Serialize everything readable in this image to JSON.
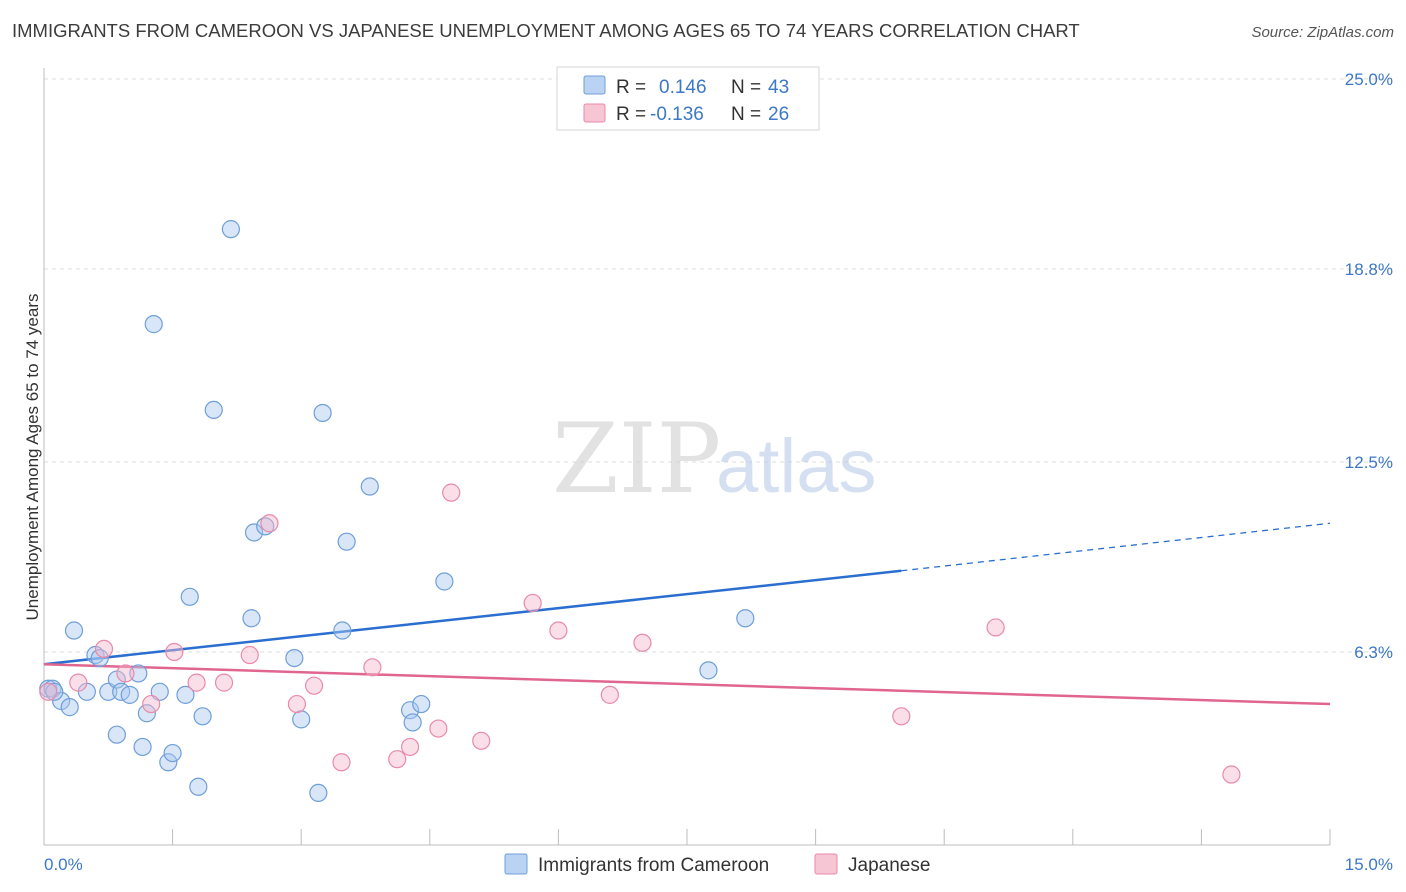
{
  "title": "IMMIGRANTS FROM CAMEROON VS JAPANESE UNEMPLOYMENT AMONG AGES 65 TO 74 YEARS CORRELATION CHART",
  "source": "Source: ZipAtlas.com",
  "watermark": {
    "zip": "ZIP",
    "atlas": "atlas"
  },
  "colors": {
    "blue_fill": "#a9c8ef",
    "blue_stroke": "#6f9fd8",
    "blue_line": "#2a6fcf",
    "pink_fill": "#f5b8cb",
    "pink_stroke": "#e98aa9",
    "pink_line": "#e0668f",
    "grid": "#dcdcdc",
    "tick_text": "#3d78c8"
  },
  "legend": {
    "rows": [
      {
        "r_label": "R =",
        "r_value": "0.146",
        "n_label": "N =",
        "n_value": "43"
      },
      {
        "r_label": "R =",
        "r_value": "-0.136",
        "n_label": "N =",
        "n_value": "26"
      }
    ]
  },
  "bottom_legend": {
    "series1": "Immigrants from Cameroon",
    "series2": "Japanese"
  },
  "chart_data": {
    "type": "scatter",
    "title": "IMMIGRANTS FROM CAMEROON VS JAPANESE UNEMPLOYMENT AMONG AGES 65 TO 74 YEARS CORRELATION CHART",
    "xlabel": "",
    "ylabel": "Unemployment Among Ages 65 to 74 years",
    "xlim": [
      0,
      15
    ],
    "ylim": [
      0,
      25
    ],
    "x_tick_labels": {
      "min": "0.0%",
      "max": "15.0%"
    },
    "y_ticks": [
      {
        "value": 6.3,
        "label": "6.3%"
      },
      {
        "value": 12.5,
        "label": "12.5%"
      },
      {
        "value": 18.8,
        "label": "18.8%"
      },
      {
        "value": 25.0,
        "label": "25.0%"
      }
    ],
    "series": [
      {
        "name": "Immigrants from Cameroon",
        "r": 0.146,
        "n": 43,
        "trend": {
          "x0": 0,
          "y0": 5.9,
          "x1": 10.0,
          "y1": 8.95,
          "dash_x1": 15.0,
          "dash_y1": 10.5
        },
        "points": [
          [
            0.05,
            5.1
          ],
          [
            0.1,
            5.1
          ],
          [
            0.2,
            4.7
          ],
          [
            0.3,
            4.5
          ],
          [
            0.5,
            5.0
          ],
          [
            0.35,
            7.0
          ],
          [
            0.6,
            6.2
          ],
          [
            0.65,
            6.1
          ],
          [
            0.75,
            5.0
          ],
          [
            0.85,
            5.4
          ],
          [
            0.9,
            5.0
          ],
          [
            1.0,
            4.9
          ],
          [
            1.1,
            5.6
          ],
          [
            1.2,
            4.3
          ],
          [
            1.35,
            5.0
          ],
          [
            0.85,
            3.6
          ],
          [
            1.15,
            3.2
          ],
          [
            1.45,
            2.7
          ],
          [
            1.5,
            3.0
          ],
          [
            1.65,
            4.9
          ],
          [
            1.85,
            4.2
          ],
          [
            1.8,
            1.9
          ],
          [
            1.7,
            8.1
          ],
          [
            1.28,
            17.0
          ],
          [
            1.98,
            14.2
          ],
          [
            2.18,
            20.1
          ],
          [
            2.45,
            10.2
          ],
          [
            2.58,
            10.4
          ],
          [
            2.42,
            7.4
          ],
          [
            2.92,
            6.1
          ],
          [
            3.0,
            4.1
          ],
          [
            3.2,
            1.7
          ],
          [
            3.25,
            14.1
          ],
          [
            3.48,
            7.0
          ],
          [
            3.53,
            9.9
          ],
          [
            3.8,
            11.7
          ],
          [
            4.27,
            4.4
          ],
          [
            4.3,
            4.0
          ],
          [
            4.4,
            4.6
          ],
          [
            4.67,
            8.6
          ],
          [
            7.75,
            5.7
          ],
          [
            8.18,
            7.4
          ],
          [
            0.12,
            5.0
          ]
        ]
      },
      {
        "name": "Japanese",
        "r": -0.136,
        "n": 26,
        "trend": {
          "x0": 0,
          "y0": 5.9,
          "x1": 15.0,
          "y1": 4.6
        },
        "points": [
          [
            0.05,
            5.0
          ],
          [
            0.4,
            5.3
          ],
          [
            0.7,
            6.4
          ],
          [
            0.95,
            5.6
          ],
          [
            1.25,
            4.6
          ],
          [
            1.52,
            6.3
          ],
          [
            1.78,
            5.3
          ],
          [
            2.1,
            5.3
          ],
          [
            2.4,
            6.2
          ],
          [
            2.63,
            10.5
          ],
          [
            2.95,
            4.6
          ],
          [
            3.15,
            5.2
          ],
          [
            3.47,
            2.7
          ],
          [
            3.83,
            5.8
          ],
          [
            4.12,
            2.8
          ],
          [
            4.27,
            3.2
          ],
          [
            4.6,
            3.8
          ],
          [
            4.75,
            11.5
          ],
          [
            5.1,
            3.4
          ],
          [
            5.7,
            7.9
          ],
          [
            6.0,
            7.0
          ],
          [
            6.6,
            4.9
          ],
          [
            6.98,
            6.6
          ],
          [
            10.0,
            4.2
          ],
          [
            11.1,
            7.1
          ],
          [
            13.85,
            2.3
          ]
        ]
      }
    ]
  }
}
